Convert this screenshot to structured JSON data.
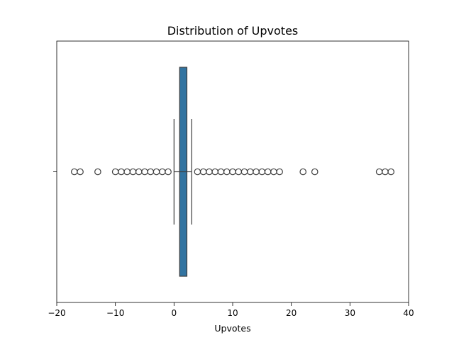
{
  "chart_data": {
    "type": "box",
    "title": "Distribution of Upvotes",
    "xlabel": "Upvotes",
    "ylabel": "",
    "xlim": [
      -20,
      40
    ],
    "xticks": [
      -20,
      -10,
      0,
      10,
      20,
      30,
      40
    ],
    "tick_labels": [
      "−20",
      "−10",
      "0",
      "10",
      "20",
      "30",
      "40"
    ],
    "grid": false,
    "box": {
      "q1": 1,
      "median": 2,
      "q3": 2,
      "whisker_low": 0,
      "whisker_high": 3,
      "color": "#3274a1"
    },
    "outliers": [
      -17,
      -16,
      -13,
      -10,
      -9,
      -8,
      -7,
      -6,
      -5,
      -4,
      -3,
      -2,
      -1,
      4,
      5,
      6,
      7,
      8,
      9,
      10,
      11,
      12,
      13,
      14,
      15,
      16,
      17,
      18,
      22,
      24,
      35,
      36,
      37
    ]
  }
}
